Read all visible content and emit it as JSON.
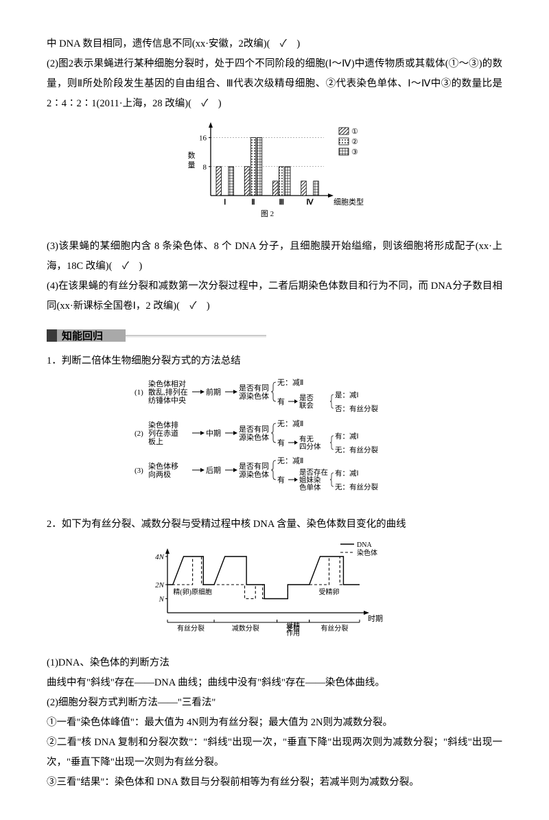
{
  "para1": "中 DNA 数目相同，遗传信息不同(xx·安徽，2改编)(　✓　)",
  "para2": "(2)图2表示果蝇进行某种细胞分裂时，处于四个不同阶段的细胞(Ⅰ～Ⅳ)中遗传物质或其载体(①～③)的数量，则Ⅱ所处阶段发生基因的自由组合、Ⅲ代表次级精母细胞、②代表染色单体、Ⅰ～Ⅳ中③的数量比是 2∶4∶2∶1(2011·上海，28 改编)(　✓　)",
  "chart2": {
    "ylabel": "数量",
    "xlabel": "细胞类型",
    "caption": "图 2",
    "yticks": [
      8,
      16
    ],
    "categories": [
      "Ⅰ",
      "Ⅱ",
      "Ⅲ",
      "Ⅳ"
    ],
    "series_labels": [
      "①",
      "②",
      "③"
    ],
    "series": {
      "s1": [
        8,
        8,
        4,
        4
      ],
      "s2": [
        0,
        16,
        8,
        0
      ],
      "s3": [
        8,
        16,
        8,
        4
      ]
    },
    "patterns": {
      "s1": "diag",
      "s2": "dots",
      "s3": "grid"
    },
    "axis_color": "#000000",
    "bg": "#ffffff",
    "font_size": 11
  },
  "para3": "(3)该果蝇的某细胞内含 8 条染色体、8 个 DNA 分子，且细胞膜开始缢缩，则该细胞将形成配子(xx·上海，18C 改编)(　✓　)",
  "para4": "(4)在该果蝇的有丝分裂和减数第一次分裂过程中，二者后期染色体数目和行为不同，而 DNA分子数目相同(xx·新课标全国卷Ⅰ，2 改编)(　✓　)",
  "section_header": "知能回归",
  "h1": "1．判断二倍体生物细胞分裂方式的方法总结",
  "flowchart": {
    "rows": [
      {
        "idx": "(1)",
        "left_lines": [
          "染色体相对",
          "散乱,排列在",
          "纺锤体中央"
        ],
        "phase": "前期",
        "qlabel": [
          "是否有同",
          "源染色体"
        ],
        "branch_no": "无：减Ⅱ",
        "branch_yes_label": "有",
        "sub_q": [
          "是否",
          "联会"
        ],
        "sub_yes": "是：减Ⅰ",
        "sub_no": "否：有丝分裂"
      },
      {
        "idx": "(2)",
        "left_lines": [
          "染色体排",
          "列在赤道",
          "板上"
        ],
        "phase": "中期",
        "qlabel": [
          "是否有同",
          "源染色体"
        ],
        "branch_no": "无：减Ⅱ",
        "branch_yes_label": "有",
        "sub_q": [
          "有无",
          "四分体"
        ],
        "sub_yes": "有：减Ⅰ",
        "sub_no": "无：有丝分裂"
      },
      {
        "idx": "(3)",
        "left_lines": [
          "染色体移",
          "向两极"
        ],
        "phase": "后期",
        "qlabel": [
          "是否有同",
          "源染色体"
        ],
        "branch_no": "无：减Ⅱ",
        "branch_yes_label": "有",
        "sub_q": [
          "是否存在",
          "姐妹染",
          "色单体"
        ],
        "sub_yes": "有：减Ⅰ",
        "sub_no": "无：有丝分裂"
      }
    ],
    "font_size": 11
  },
  "h2": "2．如下为有丝分裂、减数分裂与受精过程中核 DNA 含量、染色体数目变化的曲线",
  "curve": {
    "y_ticks": [
      "N",
      "2N",
      "4N"
    ],
    "x_label": "时期",
    "legend": {
      "dna": "DNA",
      "chr": "染色体"
    },
    "cell_label": "精(卵)原细胞",
    "egg_label": "受精卵",
    "phases": [
      "有丝分裂",
      "减数分裂",
      "受精",
      "作用",
      "有丝分裂"
    ],
    "colors": {
      "dna": "#000000",
      "chr": "#000000"
    },
    "font_size": 11
  },
  "p_after_curve_1": "(1)DNA、染色体的判断方法",
  "p_after_curve_2": "曲线中有\"斜线\"存在——DNA 曲线；曲线中没有\"斜线\"存在——染色体曲线。",
  "p_after_curve_3": "(2)细胞分裂方式判断方法——\"三看法\"",
  "p_after_curve_4": "①一看\"染色体峰值\"：最大值为 4N则为有丝分裂；最大值为 2N则为减数分裂。",
  "p_after_curve_5": "②二看\"核 DNA 复制和分裂次数\"：\"斜线\"出现一次，\"垂直下降\"出现两次则为减数分裂；\"斜线\"出现一次，\"垂直下降\"出现一次则为有丝分裂。",
  "p_after_curve_6": "③三看\"结果\"：染色体和 DNA 数目与分裂前相等为有丝分裂；若减半则为减数分裂。"
}
